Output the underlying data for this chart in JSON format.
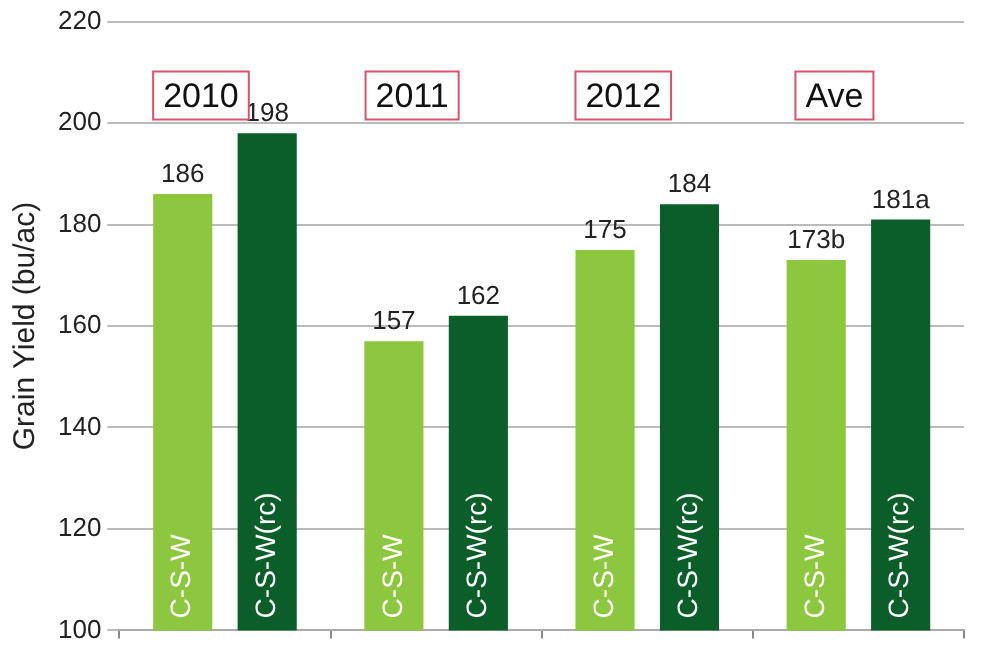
{
  "chart_data": {
    "type": "bar",
    "ylabel": "Grain Yield (bu/ac)",
    "categories": [
      "2010",
      "2011",
      "2012",
      "Ave"
    ],
    "series": [
      {
        "name": "C-S-W",
        "color": "#8dc63f",
        "values": [
          186,
          157,
          175,
          173
        ],
        "value_labels": [
          "186",
          "157",
          "175",
          "173b"
        ]
      },
      {
        "name": "C-S-W(rc)",
        "color": "#0b5e2a",
        "values": [
          198,
          162,
          184,
          181
        ],
        "value_labels": [
          "198",
          "162",
          "184",
          "181a"
        ]
      }
    ],
    "ylim": [
      100,
      220
    ],
    "yticks": [
      100,
      120,
      140,
      160,
      180,
      200,
      220
    ],
    "grid": "y",
    "legend": false
  }
}
